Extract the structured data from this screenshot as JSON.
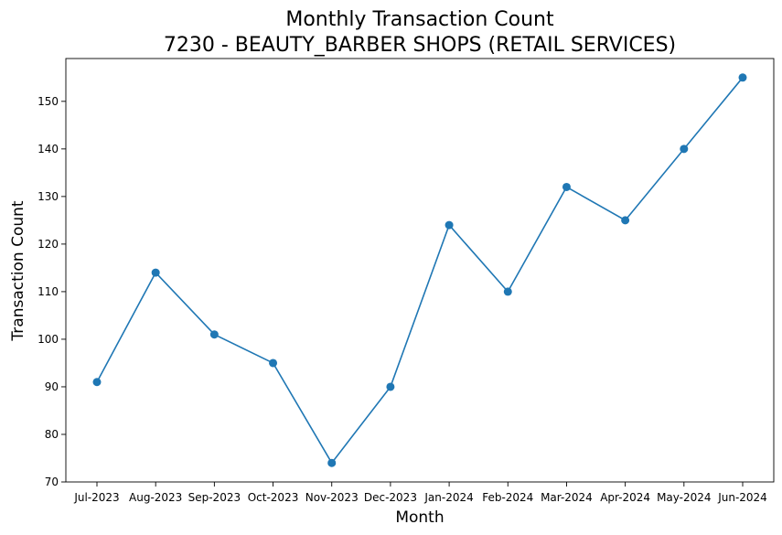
{
  "chart_data": {
    "type": "line",
    "title": "Monthly Transaction Count",
    "subtitle": "7230 - BEAUTY_BARBER SHOPS (RETAIL SERVICES)",
    "xlabel": "Month",
    "ylabel": "Transaction Count",
    "categories": [
      "Jul-2023",
      "Aug-2023",
      "Sep-2023",
      "Oct-2023",
      "Nov-2023",
      "Dec-2023",
      "Jan-2024",
      "Feb-2024",
      "Mar-2024",
      "Apr-2024",
      "May-2024",
      "Jun-2024"
    ],
    "series": [
      {
        "values": [
          91,
          114,
          101,
          95,
          74,
          90,
          124,
          110,
          132,
          125,
          140,
          155
        ],
        "color": "#1f77b4"
      }
    ],
    "ylim": [
      70,
      159
    ],
    "yticks": [
      70,
      80,
      90,
      100,
      110,
      120,
      130,
      140,
      150
    ],
    "marker": "circle",
    "grid": false,
    "legend": "none"
  }
}
